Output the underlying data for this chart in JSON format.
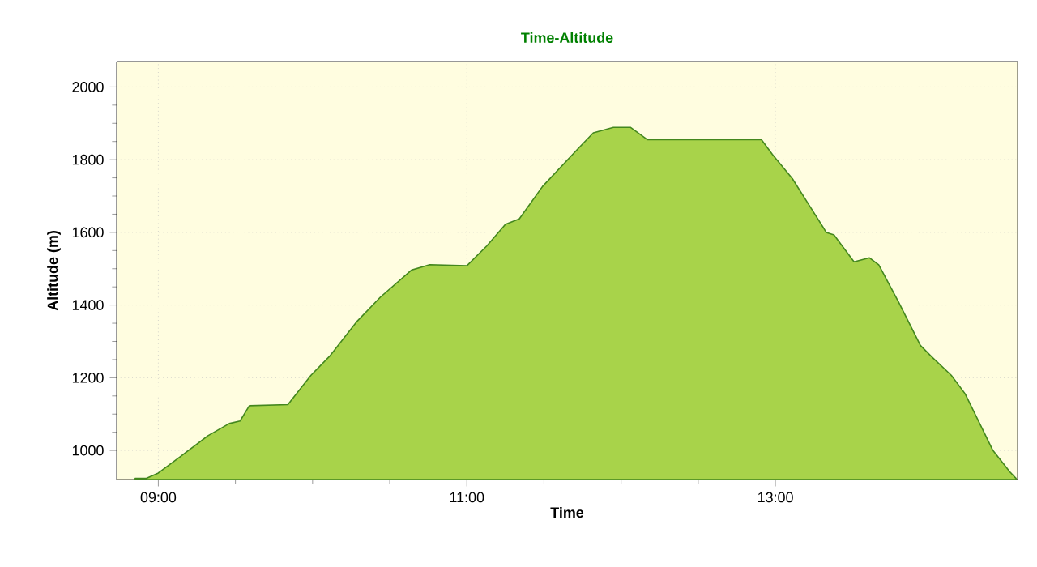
{
  "chart_data": {
    "type": "area",
    "title": "Time-Altitude",
    "xlabel": "Time",
    "ylabel": "Altitude (m)",
    "xlim": [
      8.73,
      14.57
    ],
    "ylim": [
      920,
      2070
    ],
    "xticks": [
      {
        "value": 9,
        "label": "09:00"
      },
      {
        "value": 11,
        "label": "11:00"
      },
      {
        "value": 13,
        "label": "13:00"
      }
    ],
    "yticks": [
      1000,
      1200,
      1400,
      1600,
      1800,
      2000
    ],
    "grid": true,
    "series": [
      {
        "color": "#a8d34a",
        "x": [
          8.85,
          8.92,
          9.0,
          9.14,
          9.32,
          9.46,
          9.53,
          9.59,
          9.84,
          9.99,
          10.11,
          10.29,
          10.44,
          10.64,
          10.76,
          11.0,
          11.13,
          11.25,
          11.34,
          11.49,
          11.72,
          11.82,
          11.95,
          12.06,
          12.17,
          12.91,
          12.98,
          13.11,
          13.22,
          13.33,
          13.38,
          13.51,
          13.61,
          13.67,
          13.8,
          13.94,
          14.01,
          14.14,
          14.23,
          14.41,
          14.52,
          14.56
        ],
        "values": [
          923,
          923,
          938,
          982,
          1040,
          1074,
          1081,
          1123,
          1126,
          1207,
          1259,
          1356,
          1422,
          1496,
          1511,
          1508,
          1563,
          1622,
          1637,
          1726,
          1830,
          1874,
          1889,
          1889,
          1855,
          1855,
          1815,
          1748,
          1674,
          1600,
          1593,
          1519,
          1530,
          1511,
          1407,
          1289,
          1259,
          1207,
          1156,
          1000,
          941,
          923
        ]
      }
    ]
  }
}
